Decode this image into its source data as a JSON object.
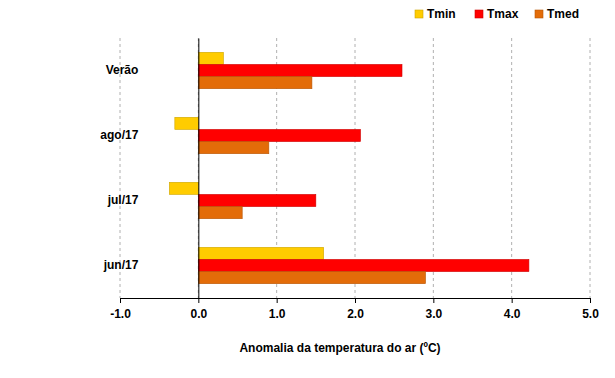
{
  "chart_data": {
    "type": "bar",
    "orientation": "horizontal",
    "xlabel": "Anomalia da temperatura do ar (ºC)",
    "categories": [
      "Verão",
      "ago/17",
      "jul/17",
      "jun/17"
    ],
    "series": [
      {
        "name": "Tmin",
        "color": "#ffcc00",
        "values": [
          0.32,
          -0.3,
          -0.37,
          1.6
        ]
      },
      {
        "name": "Tmax",
        "color": "#ff0000",
        "values": [
          2.6,
          2.07,
          1.5,
          4.22
        ]
      },
      {
        "name": "Tmed",
        "color": "#e36c09",
        "values": [
          1.45,
          0.9,
          0.56,
          2.9
        ]
      }
    ],
    "xlim": [
      -1,
      5
    ],
    "xticks": [
      {
        "value": -1,
        "label": "-1.0"
      },
      {
        "value": 0,
        "label": "0.0"
      },
      {
        "value": 1,
        "label": "1.0"
      },
      {
        "value": 2,
        "label": "2.0"
      },
      {
        "value": 3,
        "label": "3.0"
      },
      {
        "value": 4,
        "label": "4.0"
      },
      {
        "value": 5,
        "label": "5.0"
      }
    ],
    "grid": true,
    "legend": "top-right"
  }
}
